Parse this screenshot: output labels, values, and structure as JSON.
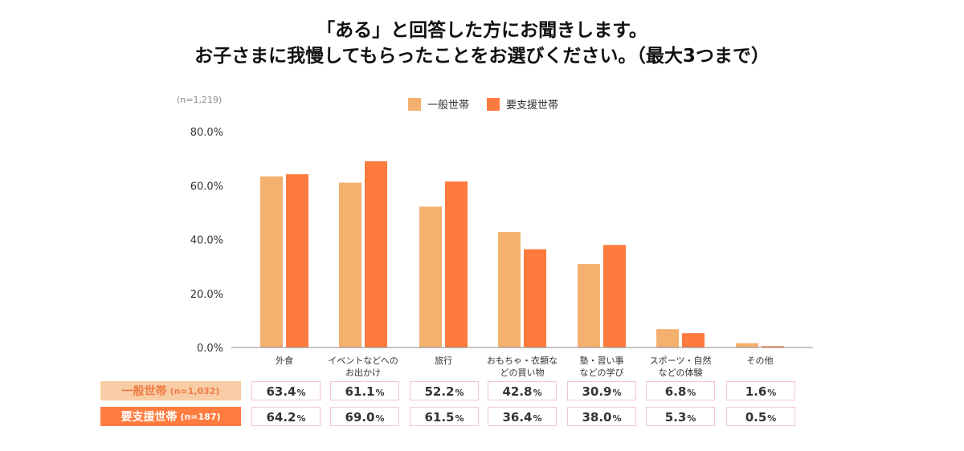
{
  "title": {
    "line1": "「ある」と回答した方にお聞きします。",
    "line2": "お子さまに我慢してもらったことをお選びください。（最大3つまで）"
  },
  "sample_total": "(n=1,219)",
  "legend": [
    "一般世帯",
    "要支援世帯"
  ],
  "colors": {
    "general": "#f4b06f",
    "support": "#ff7a3d",
    "axis": "#888888",
    "cell_border": "#f2c7c9"
  },
  "table": {
    "rows": [
      {
        "label": "一般世帯",
        "n": "(n=1,032)",
        "values": [
          "63.4",
          "61.1",
          "52.2",
          "42.8",
          "30.9",
          "6.8",
          "1.6"
        ]
      },
      {
        "label": "要支援世帯",
        "n": "(n=187)",
        "values": [
          "64.2",
          "69.0",
          "61.5",
          "36.4",
          "38.0",
          "5.3",
          "0.5"
        ]
      }
    ],
    "unit": "%"
  },
  "chart_data": {
    "type": "bar",
    "categories": [
      [
        "外食"
      ],
      [
        "イベントなどへの",
        "お出かけ"
      ],
      [
        "旅行"
      ],
      [
        "おもちゃ・衣類な",
        "どの買い物"
      ],
      [
        "塾・習い事",
        "などの学び"
      ],
      [
        "スポーツ・自然",
        "などの体験"
      ],
      [
        "その他"
      ]
    ],
    "series": [
      {
        "name": "一般世帯",
        "values": [
          63.4,
          61.1,
          52.2,
          42.8,
          30.9,
          6.8,
          1.6
        ]
      },
      {
        "name": "要支援世帯",
        "values": [
          64.2,
          69.0,
          61.5,
          36.4,
          38.0,
          5.3,
          0.5
        ]
      }
    ],
    "yticks": [
      "0.0%",
      "20.0%",
      "40.0%",
      "60.0%",
      "80.0%"
    ],
    "ylim": [
      0,
      80
    ],
    "legend_position": "top-center",
    "grid": false
  }
}
